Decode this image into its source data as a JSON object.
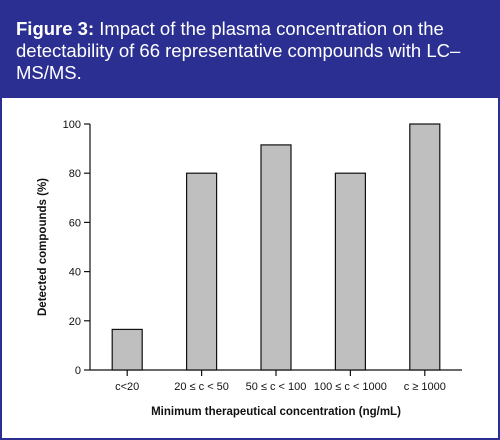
{
  "figure": {
    "label": "Figure 3:",
    "caption": "Impact of the plasma concentration on the detectability of 66 representative compounds with LC–MS/MS.",
    "header_color": "#2b2f92",
    "bar_color": "#bfbfbf"
  },
  "chart_data": {
    "type": "bar",
    "categories": [
      "c<20",
      "20 ≤ c < 50",
      "50 ≤ c < 100",
      "100 ≤ c < 1000",
      "c ≥ 1000"
    ],
    "values": [
      16.5,
      80,
      91.5,
      80,
      100
    ],
    "xlabel": "Minimum therapeutical concentration (ng/mL)",
    "ylabel": "Detected compounds (%)",
    "ylim": [
      0,
      100
    ],
    "yticks": [
      0,
      20,
      40,
      60,
      80,
      100
    ],
    "grid": false,
    "legend": "none"
  }
}
